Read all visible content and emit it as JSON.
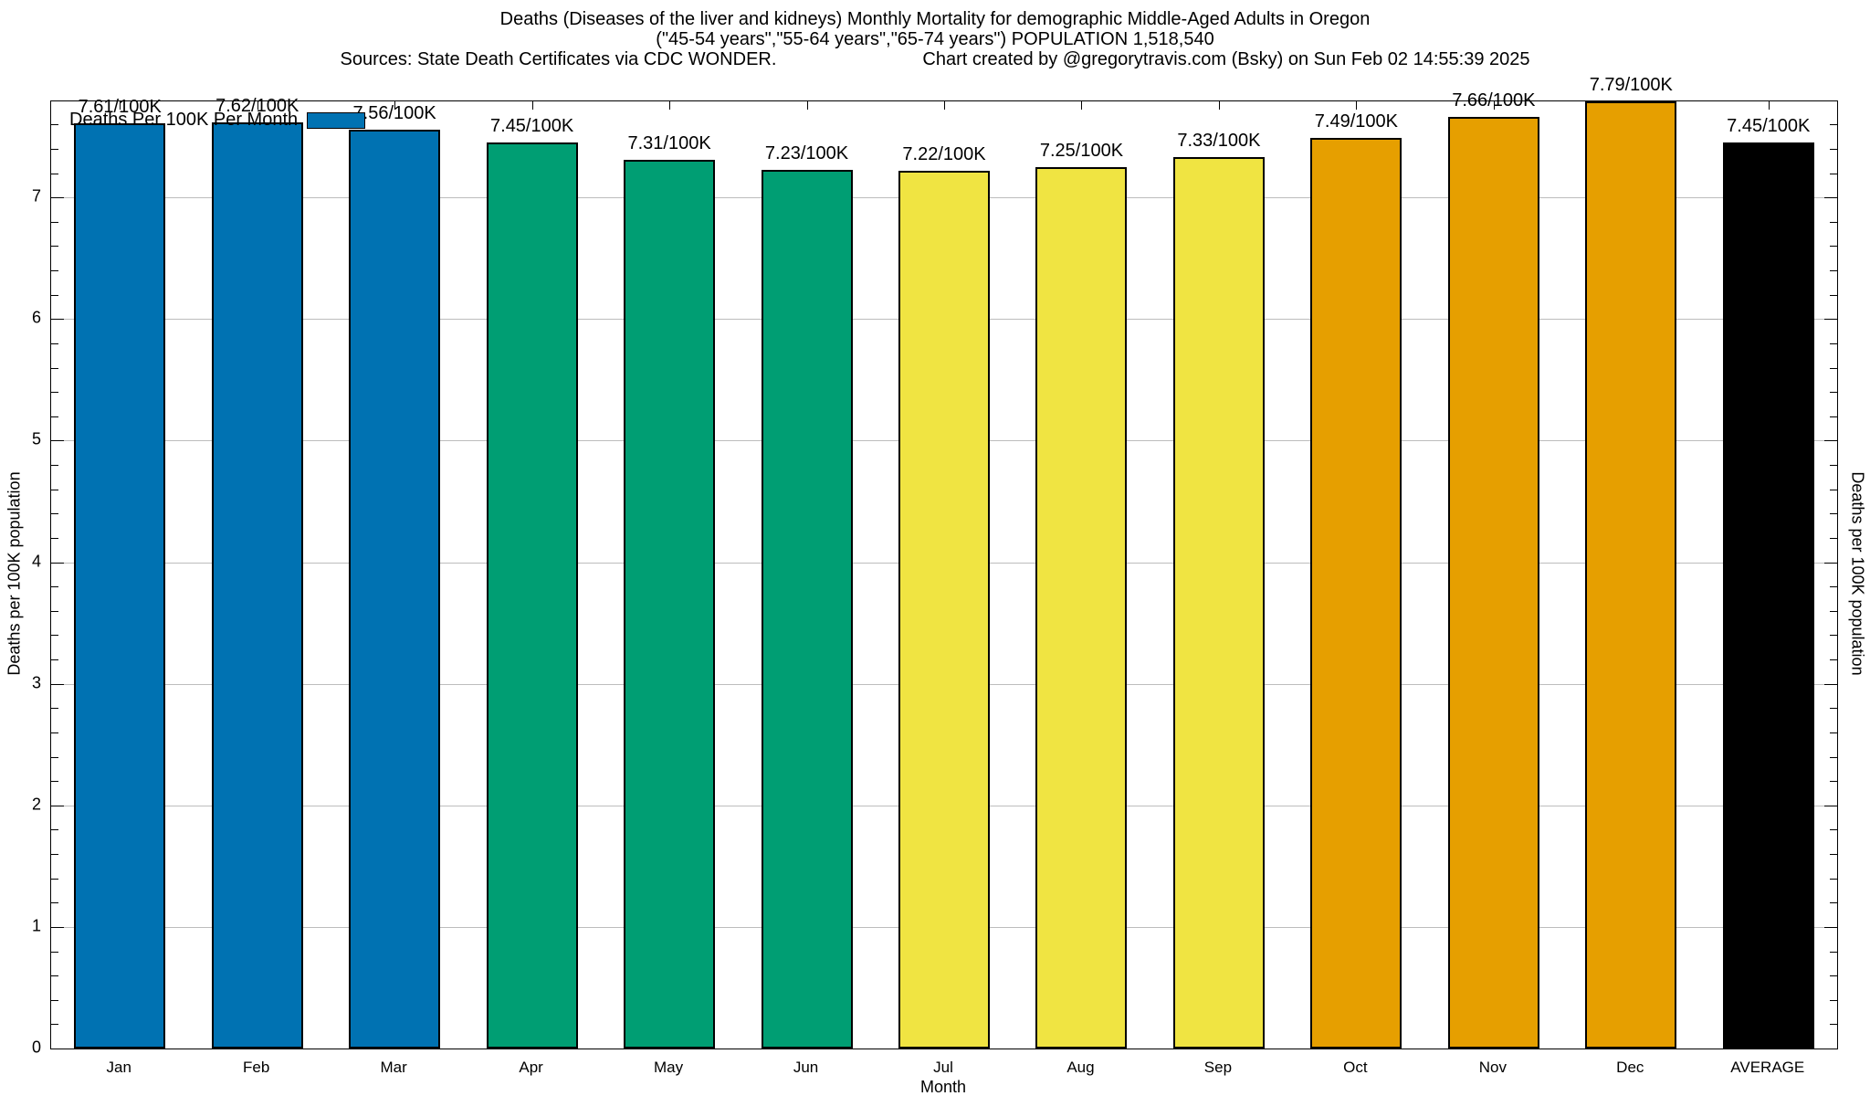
{
  "header": {
    "title": "Deaths (Diseases of the liver and kidneys) Monthly Mortality for demographic Middle-Aged Adults in Oregon",
    "subtitle": "(\"45-54 years\",\"55-64 years\",\"65-74 years\") POPULATION 1,518,540",
    "sources": "Sources: State Death Certificates via CDC WONDER.",
    "credit": "Chart created by @gregorytravis.com (Bsky) on Sun Feb 02 14:55:39 2025"
  },
  "legend": {
    "label": "Deaths Per 100K Per Month",
    "swatch_color": "#0072B2"
  },
  "axes": {
    "x_label": "Month",
    "y_left_label": "Deaths per 100K population",
    "y_right_label": "Deaths per 100K population",
    "y_ticks": [
      0,
      1,
      2,
      3,
      4,
      5,
      6,
      7
    ]
  },
  "colors": {
    "blue": "#0072B2",
    "green": "#009E73",
    "yellow": "#F0E442",
    "orange": "#E69F00",
    "black": "#000000",
    "grid": "#bdbdbd"
  },
  "chart_data": {
    "type": "bar",
    "title": "Deaths (Diseases of the liver and kidneys) Monthly Mortality for demographic Middle-Aged Adults in Oregon",
    "subtitle": "(\"45-54 years\",\"55-64 years\",\"65-74 years\") POPULATION 1,518,540",
    "xlabel": "Month",
    "ylabel": "Deaths per 100K population",
    "ylim": [
      0,
      7.79
    ],
    "grid": true,
    "legend_position": "top-left",
    "legend_label": "Deaths Per 100K Per Month",
    "categories": [
      "Jan",
      "Feb",
      "Mar",
      "Apr",
      "May",
      "Jun",
      "Jul",
      "Aug",
      "Sep",
      "Oct",
      "Nov",
      "Dec",
      "AVERAGE"
    ],
    "values": [
      7.61,
      7.62,
      7.56,
      7.45,
      7.31,
      7.23,
      7.22,
      7.25,
      7.33,
      7.49,
      7.66,
      7.79,
      7.45
    ],
    "bar_labels": [
      "7.61/100K",
      "7.62/100K",
      "7.56/100K",
      "7.45/100K",
      "7.31/100K",
      "7.23/100K",
      "7.22/100K",
      "7.25/100K",
      "7.33/100K",
      "7.49/100K",
      "7.66/100K",
      "7.79/100K",
      "7.45/100K"
    ],
    "bar_colors": [
      "#0072B2",
      "#0072B2",
      "#0072B2",
      "#009E73",
      "#009E73",
      "#009E73",
      "#F0E442",
      "#F0E442",
      "#F0E442",
      "#E69F00",
      "#E69F00",
      "#E69F00",
      "#000000"
    ]
  }
}
